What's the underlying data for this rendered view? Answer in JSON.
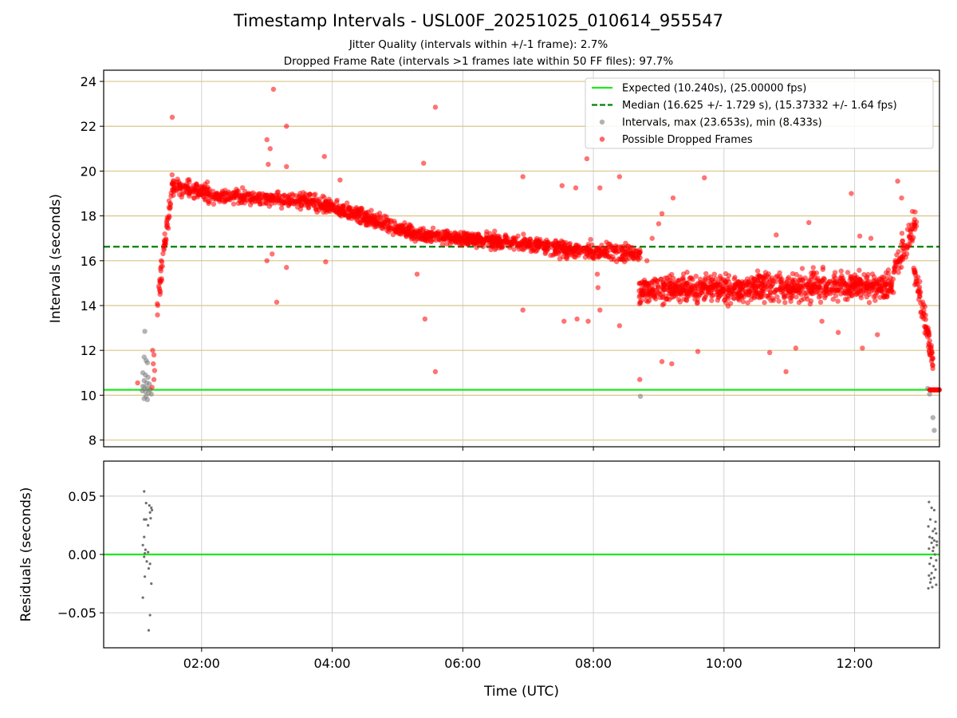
{
  "chart_data": [
    {
      "type": "scatter",
      "title": "Timestamp Intervals - USL00F_20251025_010614_955547",
      "subtitle_lines": [
        "Jitter Quality (intervals within +/-1 frame): 2.7%",
        "Dropped Frame Rate (intervals >1 frames late within 50 FF files): 97.7%"
      ],
      "ylabel": "Intervals (seconds)",
      "ylim": [
        7.7,
        24.5
      ],
      "yticks": [
        8,
        10,
        12,
        14,
        16,
        18,
        20,
        22,
        24
      ],
      "xlim_hours": [
        0.5,
        13.3
      ],
      "xticks_hours": [
        2,
        4,
        6,
        8,
        10,
        12
      ],
      "expected_interval": 10.24,
      "median_interval": 16.625,
      "legend_position": "top-right",
      "legend": [
        {
          "label": "Expected (10.240s), (25.00000 fps)",
          "style": "solid-line",
          "color": "#1ee81e"
        },
        {
          "label": "Median (16.625 +/- 1.729 s), (15.37332 +/- 1.64 fps)",
          "style": "dashed-line",
          "color": "#008000"
        },
        {
          "label": "Intervals, max (23.653s), min (8.433s)",
          "style": "marker",
          "color": "#808080"
        },
        {
          "label": "Possible Dropped Frames",
          "style": "marker",
          "color": "#ff0000"
        }
      ],
      "series": [
        {
          "name": "Intervals",
          "color": "#808080",
          "points": [
            [
              1.13,
              12.85
            ],
            [
              1.12,
              11.7
            ],
            [
              1.15,
              11.55
            ],
            [
              1.17,
              11.45
            ],
            [
              1.1,
              11.0
            ],
            [
              1.14,
              10.9
            ],
            [
              1.18,
              10.8
            ],
            [
              1.12,
              10.65
            ],
            [
              1.16,
              10.55
            ],
            [
              1.2,
              10.5
            ],
            [
              1.1,
              10.4
            ],
            [
              1.13,
              10.35
            ],
            [
              1.17,
              10.3
            ],
            [
              1.21,
              10.25
            ],
            [
              1.09,
              10.2
            ],
            [
              1.14,
              10.15
            ],
            [
              1.19,
              10.1
            ],
            [
              1.23,
              10.05
            ],
            [
              1.15,
              9.95
            ],
            [
              1.12,
              9.85
            ],
            [
              1.17,
              9.8
            ],
            [
              8.72,
              9.95
            ],
            [
              13.12,
              10.3
            ],
            [
              13.15,
              10.05
            ],
            [
              13.2,
              9.0
            ],
            [
              13.22,
              8.43
            ]
          ]
        },
        {
          "name": "Possible Dropped Frames",
          "color": "#ff0000",
          "outliers": [
            [
              1.55,
              22.4
            ],
            [
              3.1,
              23.65
            ],
            [
              3.3,
              22.0
            ],
            [
              3.0,
              21.4
            ],
            [
              3.05,
              21.0
            ],
            [
              3.02,
              20.3
            ],
            [
              3.3,
              20.2
            ],
            [
              3.88,
              20.65
            ],
            [
              4.12,
              19.6
            ],
            [
              5.4,
              20.35
            ],
            [
              5.58,
              22.85
            ],
            [
              6.92,
              19.75
            ],
            [
              7.52,
              19.35
            ],
            [
              7.73,
              19.25
            ],
            [
              7.9,
              20.55
            ],
            [
              8.1,
              19.25
            ],
            [
              8.4,
              19.75
            ],
            [
              8.82,
              16.0
            ],
            [
              8.9,
              17.0
            ],
            [
              9.0,
              17.65
            ],
            [
              9.22,
              18.8
            ],
            [
              9.05,
              18.1
            ],
            [
              9.7,
              19.7
            ],
            [
              11.95,
              19.0
            ],
            [
              10.8,
              17.15
            ],
            [
              11.3,
              17.7
            ],
            [
              12.08,
              17.1
            ],
            [
              12.25,
              17.0
            ],
            [
              12.66,
              19.55
            ],
            [
              12.72,
              18.8
            ],
            [
              3.0,
              16.0
            ],
            [
              3.3,
              15.7
            ],
            [
              3.08,
              16.3
            ],
            [
              3.15,
              14.15
            ],
            [
              3.9,
              15.95
            ],
            [
              5.3,
              15.4
            ],
            [
              5.42,
              13.4
            ],
            [
              5.58,
              11.05
            ],
            [
              6.92,
              13.8
            ],
            [
              7.55,
              13.3
            ],
            [
              7.75,
              13.4
            ],
            [
              7.92,
              13.3
            ],
            [
              8.1,
              13.8
            ],
            [
              8.4,
              13.1
            ],
            [
              8.06,
              15.4
            ],
            [
              8.07,
              14.8
            ],
            [
              8.71,
              10.7
            ],
            [
              9.05,
              11.5
            ],
            [
              9.2,
              11.4
            ],
            [
              9.6,
              11.95
            ],
            [
              10.7,
              11.9
            ],
            [
              10.95,
              11.05
            ],
            [
              11.1,
              12.1
            ],
            [
              12.12,
              12.1
            ],
            [
              12.35,
              12.7
            ],
            [
              11.75,
              12.8
            ],
            [
              11.5,
              13.3
            ],
            [
              1.02,
              10.55
            ],
            [
              1.24,
              10.35
            ],
            [
              1.25,
              12.0
            ],
            [
              1.27,
              11.8
            ],
            [
              1.26,
              11.4
            ],
            [
              1.28,
              11.1
            ],
            [
              1.27,
              10.7
            ]
          ],
          "segments": [
            {
              "t0": 1.3,
              "t1": 1.55,
              "y0": 13.4,
              "y1": 19.5,
              "spread": 0.55,
              "n": 55
            },
            {
              "t0": 1.55,
              "t1": 2.1,
              "y0": 19.3,
              "y1": 19.1,
              "spread": 0.35,
              "n": 120
            },
            {
              "t0": 2.1,
              "t1": 3.6,
              "y0": 18.9,
              "y1": 18.7,
              "spread": 0.32,
              "n": 260
            },
            {
              "t0": 3.6,
              "t1": 4.2,
              "y0": 18.65,
              "y1": 18.2,
              "spread": 0.34,
              "n": 140
            },
            {
              "t0": 4.2,
              "t1": 5.2,
              "y0": 18.2,
              "y1": 17.3,
              "spread": 0.32,
              "n": 230
            },
            {
              "t0": 5.2,
              "t1": 6.2,
              "y0": 17.2,
              "y1": 16.95,
              "spread": 0.3,
              "n": 250
            },
            {
              "t0": 6.2,
              "t1": 7.2,
              "y0": 16.95,
              "y1": 16.7,
              "spread": 0.3,
              "n": 240
            },
            {
              "t0": 7.2,
              "t1": 8.72,
              "y0": 16.6,
              "y1": 16.3,
              "spread": 0.35,
              "n": 300
            },
            {
              "t0": 8.7,
              "t1": 12.6,
              "y0": 14.7,
              "y1": 14.9,
              "spread": 0.6,
              "n": 1000
            },
            {
              "t0": 12.6,
              "t1": 12.95,
              "y0": 15.5,
              "y1": 17.8,
              "spread": 0.6,
              "n": 70
            },
            {
              "t0": 12.9,
              "t1": 13.2,
              "y0": 15.8,
              "y1": 11.6,
              "spread": 0.6,
              "n": 80
            }
          ],
          "flat_run": {
            "t0": 13.15,
            "t1": 13.3,
            "y": 10.24,
            "n": 30
          }
        }
      ]
    },
    {
      "type": "scatter",
      "ylabel": "Residuals (seconds)",
      "xlabel": "Time (UTC)",
      "ylim": [
        -0.08,
        0.08
      ],
      "yticks": [
        0.05,
        0.0,
        -0.05
      ],
      "ytick_labels": [
        "0.05",
        "0.00",
        "−0.05"
      ],
      "xlim_hours": [
        0.5,
        13.3
      ],
      "xticks_hours": [
        2,
        4,
        6,
        8,
        10,
        12
      ],
      "xtick_labels": [
        "02:00",
        "04:00",
        "06:00",
        "08:00",
        "10:00",
        "12:00"
      ],
      "zero_line_color": "#1ee81e",
      "series": [
        {
          "name": "Residuals",
          "color": "#6e6e6e",
          "points": [
            [
              1.12,
              0.054
            ],
            [
              1.15,
              0.044
            ],
            [
              1.2,
              0.042
            ],
            [
              1.23,
              0.04
            ],
            [
              1.21,
              0.036
            ],
            [
              1.24,
              0.038
            ],
            [
              1.22,
              0.031
            ],
            [
              1.12,
              0.03
            ],
            [
              1.15,
              0.03
            ],
            [
              1.18,
              0.025
            ],
            [
              1.12,
              0.015
            ],
            [
              1.1,
              0.008
            ],
            [
              1.14,
              0.004
            ],
            [
              1.13,
              0.001
            ],
            [
              1.18,
              0.002
            ],
            [
              1.12,
              -0.002
            ],
            [
              1.16,
              -0.006
            ],
            [
              1.21,
              -0.008
            ],
            [
              1.19,
              -0.012
            ],
            [
              1.13,
              -0.019
            ],
            [
              1.23,
              -0.025
            ],
            [
              1.1,
              -0.037
            ],
            [
              1.21,
              -0.052
            ],
            [
              1.19,
              -0.065
            ],
            [
              13.14,
              0.045
            ],
            [
              13.18,
              0.04
            ],
            [
              13.22,
              0.038
            ],
            [
              13.16,
              0.03
            ],
            [
              13.24,
              0.028
            ],
            [
              13.13,
              0.024
            ],
            [
              13.2,
              0.02
            ],
            [
              13.25,
              0.018
            ],
            [
              13.15,
              0.015
            ],
            [
              13.22,
              0.012
            ],
            [
              13.18,
              0.01
            ],
            [
              13.26,
              0.008
            ],
            [
              13.14,
              0.005
            ],
            [
              13.2,
              0.003
            ],
            [
              13.23,
              0.0
            ],
            [
              13.17,
              -0.003
            ],
            [
              13.25,
              -0.005
            ],
            [
              13.15,
              -0.008
            ],
            [
              13.21,
              -0.01
            ],
            [
              13.24,
              -0.013
            ],
            [
              13.18,
              -0.016
            ],
            [
              13.14,
              -0.018
            ],
            [
              13.22,
              -0.02
            ],
            [
              13.16,
              -0.024
            ],
            [
              13.25,
              -0.026
            ],
            [
              13.13,
              -0.029
            ],
            [
              13.19,
              -0.028
            ],
            [
              13.21,
              0.006
            ],
            [
              13.19,
              0.014
            ],
            [
              13.23,
              0.022
            ],
            [
              13.17,
              -0.021
            ],
            [
              13.26,
              0.011
            ]
          ]
        }
      ]
    }
  ]
}
